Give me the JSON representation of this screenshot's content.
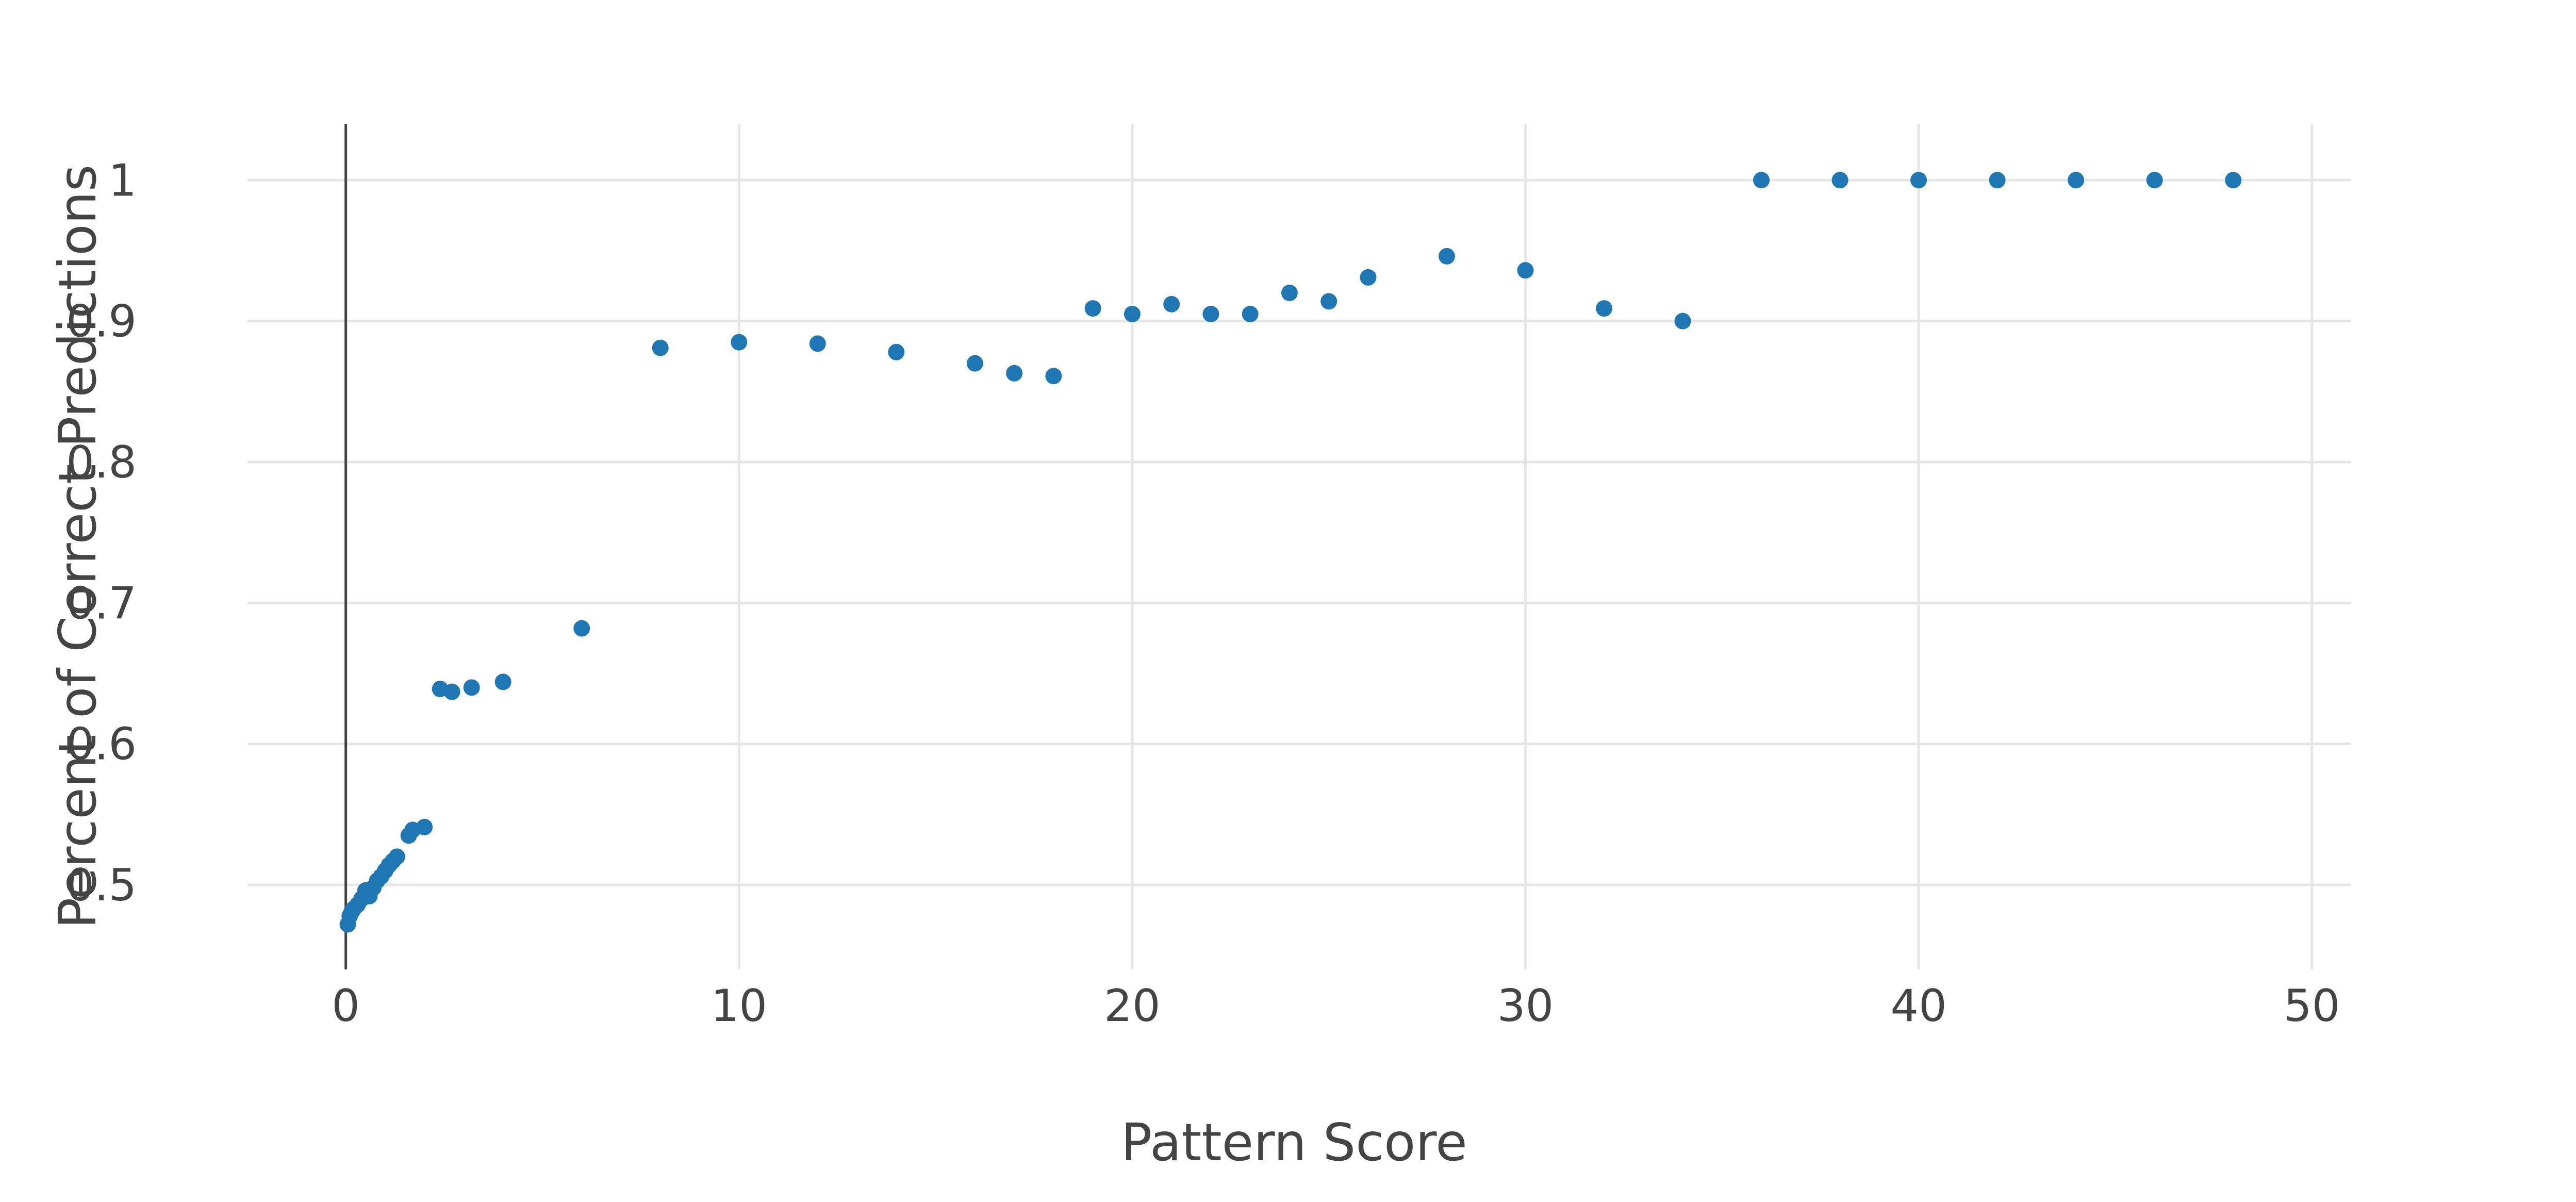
{
  "chart_data": {
    "type": "scatter",
    "xlabel": "Pattern Score",
    "ylabel": "Percent of Correct Predictions",
    "xlim": [
      -2.5,
      51
    ],
    "ylim": [
      0.44,
      1.04
    ],
    "x_ticks": [
      0,
      10,
      20,
      30,
      40,
      50
    ],
    "y_ticks": [
      0.5,
      0.6,
      0.7,
      0.8,
      0.9,
      1
    ],
    "x_tick_labels": [
      "0",
      "10",
      "20",
      "30",
      "40",
      "50"
    ],
    "y_tick_labels": [
      "0.5",
      "0.6",
      "0.7",
      "0.8",
      "0.9",
      "1"
    ],
    "grid": true,
    "zero_line_x": true,
    "marker_color": "#1f77b4",
    "series": [
      {
        "x": [
          0.05,
          0.1,
          0.15,
          0.2,
          0.3,
          0.4,
          0.5,
          0.6,
          0.7,
          0.8,
          0.9,
          1.0,
          1.1,
          1.2,
          1.3,
          1.6,
          1.7,
          2.0,
          2.4,
          2.7,
          3.2,
          4.0,
          6.0,
          8,
          10,
          12,
          14,
          16,
          17,
          18,
          19,
          20,
          21,
          22,
          23,
          24,
          25,
          26,
          28,
          30,
          32,
          34,
          36,
          38,
          40,
          42,
          44,
          46,
          48
        ],
        "y": [
          0.472,
          0.478,
          0.481,
          0.483,
          0.486,
          0.49,
          0.496,
          0.492,
          0.498,
          0.503,
          0.506,
          0.51,
          0.514,
          0.517,
          0.52,
          0.535,
          0.539,
          0.541,
          0.639,
          0.637,
          0.64,
          0.644,
          0.682,
          0.881,
          0.885,
          0.884,
          0.878,
          0.87,
          0.863,
          0.861,
          0.909,
          0.905,
          0.912,
          0.905,
          0.905,
          0.92,
          0.914,
          0.931,
          0.946,
          0.936,
          0.909,
          0.9,
          1.0,
          1.0,
          1.0,
          1.0,
          1.0,
          1.0,
          1.0
        ]
      }
    ]
  }
}
